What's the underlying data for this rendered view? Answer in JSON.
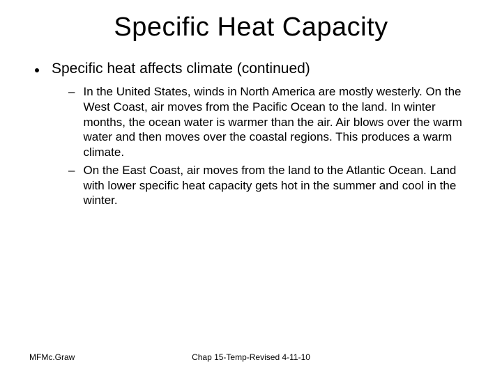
{
  "slide": {
    "title": "Specific Heat Capacity",
    "bullet_main": "Specific heat affects climate (continued)",
    "sub_bullets": [
      "In the United States, winds in North America are mostly westerly. On the West Coast, air moves from the Pacific Ocean to the land. In winter months, the ocean water is warmer than the air. Air blows over the warm water and then moves over the coastal regions. This produces a warm climate.",
      "On the East Coast, air moves from the land to the Atlantic Ocean. Land with lower specific heat capacity gets hot in the summer and cool in the winter."
    ],
    "footer_left": "MFMc.Graw",
    "footer_center": "Chap 15-Temp-Revised 4-11-10"
  },
  "style": {
    "title_fontsize": 38,
    "bullet_main_fontsize": 21,
    "sub_bullet_fontsize": 17,
    "footer_fontsize": 12,
    "text_color": "#000000",
    "background_color": "#ffffff",
    "font_family_main": "Comic Sans MS",
    "font_family_footer": "Arial"
  }
}
